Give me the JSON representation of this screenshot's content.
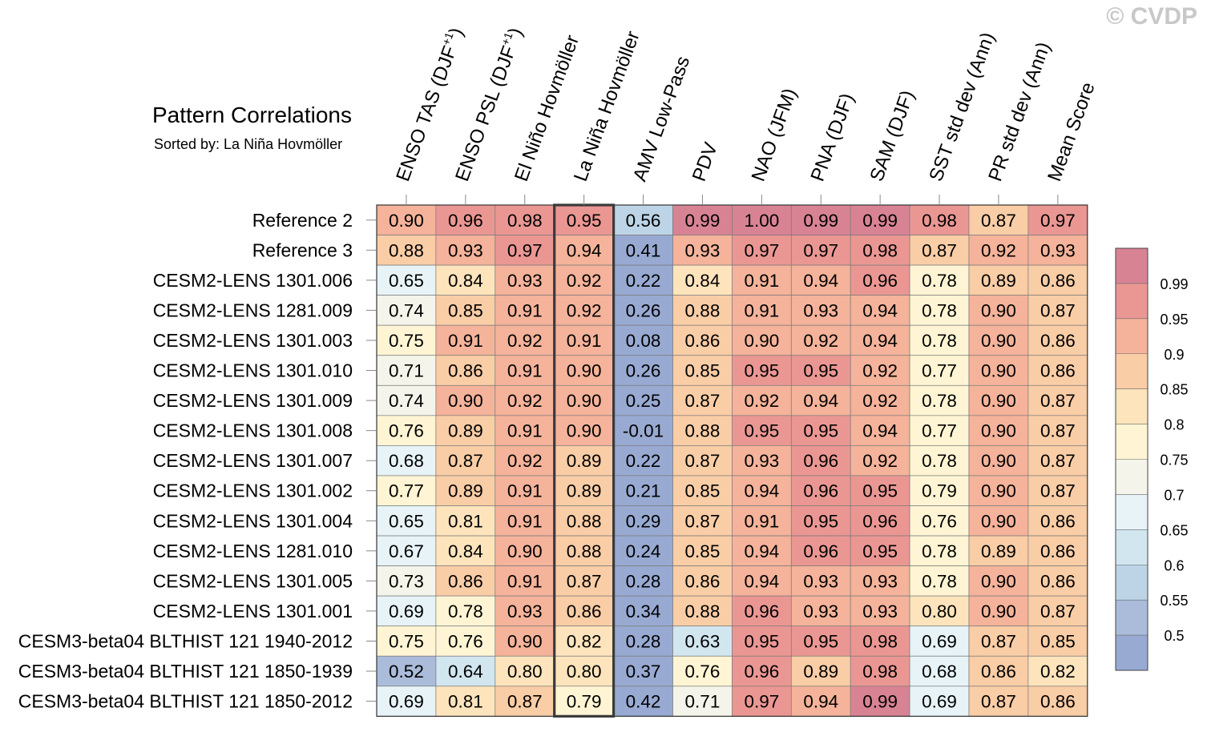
{
  "watermark": "© CVDP",
  "chart_data": {
    "type": "heatmap",
    "title": "Pattern Correlations",
    "subtitle": "Sorted by: La Niña Hovmöller",
    "highlighted_column": "La Niña Hovmöller",
    "columns": [
      {
        "name": "ENSO TAS (DJF",
        "sup": "+1",
        "tail": ")"
      },
      {
        "name": "ENSO PSL (DJF",
        "sup": "+1",
        "tail": ")"
      },
      {
        "name": "El Niño Hovmöller",
        "sup": "",
        "tail": ""
      },
      {
        "name": "La Niña Hovmöller",
        "sup": "",
        "tail": ""
      },
      {
        "name": "AMV Low-Pass",
        "sup": "",
        "tail": ""
      },
      {
        "name": "PDV",
        "sup": "",
        "tail": ""
      },
      {
        "name": "NAO (JFM)",
        "sup": "",
        "tail": ""
      },
      {
        "name": "PNA (DJF)",
        "sup": "",
        "tail": ""
      },
      {
        "name": "SAM (DJF)",
        "sup": "",
        "tail": ""
      },
      {
        "name": "SST std dev (Ann)",
        "sup": "",
        "tail": ""
      },
      {
        "name": "PR std dev (Ann)",
        "sup": "",
        "tail": ""
      },
      {
        "name": "Mean Score",
        "sup": "",
        "tail": ""
      }
    ],
    "rows": [
      "Reference 2",
      "Reference 3",
      "CESM2-LENS 1301.006",
      "CESM2-LENS 1281.009",
      "CESM2-LENS 1301.003",
      "CESM2-LENS 1301.010",
      "CESM2-LENS 1301.009",
      "CESM2-LENS 1301.008",
      "CESM2-LENS 1301.007",
      "CESM2-LENS 1301.002",
      "CESM2-LENS 1301.004",
      "CESM2-LENS 1281.010",
      "CESM2-LENS 1301.005",
      "CESM2-LENS 1301.001",
      "CESM3-beta04 BLTHIST 121 1940-2012",
      "CESM3-beta04 BLTHIST 121 1850-1939",
      "CESM3-beta04 BLTHIST 121 1850-2012"
    ],
    "values": [
      [
        "0.90",
        "0.96",
        "0.98",
        "0.95",
        "0.56",
        "0.99",
        "1.00",
        "0.99",
        "0.99",
        "0.98",
        "0.87",
        "0.97"
      ],
      [
        "0.88",
        "0.93",
        "0.97",
        "0.94",
        "0.41",
        "0.93",
        "0.97",
        "0.97",
        "0.98",
        "0.87",
        "0.92",
        "0.93"
      ],
      [
        "0.65",
        "0.84",
        "0.93",
        "0.92",
        "0.22",
        "0.84",
        "0.91",
        "0.94",
        "0.96",
        "0.78",
        "0.89",
        "0.86"
      ],
      [
        "0.74",
        "0.85",
        "0.91",
        "0.92",
        "0.26",
        "0.88",
        "0.91",
        "0.93",
        "0.94",
        "0.78",
        "0.90",
        "0.87"
      ],
      [
        "0.75",
        "0.91",
        "0.92",
        "0.91",
        "0.08",
        "0.86",
        "0.90",
        "0.92",
        "0.94",
        "0.78",
        "0.90",
        "0.86"
      ],
      [
        "0.71",
        "0.86",
        "0.91",
        "0.90",
        "0.26",
        "0.85",
        "0.95",
        "0.95",
        "0.92",
        "0.77",
        "0.90",
        "0.86"
      ],
      [
        "0.74",
        "0.90",
        "0.92",
        "0.90",
        "0.25",
        "0.87",
        "0.92",
        "0.94",
        "0.92",
        "0.78",
        "0.90",
        "0.87"
      ],
      [
        "0.76",
        "0.89",
        "0.91",
        "0.90",
        "-0.01",
        "0.88",
        "0.95",
        "0.95",
        "0.94",
        "0.77",
        "0.90",
        "0.87"
      ],
      [
        "0.68",
        "0.87",
        "0.92",
        "0.89",
        "0.22",
        "0.87",
        "0.93",
        "0.96",
        "0.92",
        "0.78",
        "0.90",
        "0.87"
      ],
      [
        "0.77",
        "0.89",
        "0.91",
        "0.89",
        "0.21",
        "0.85",
        "0.94",
        "0.96",
        "0.95",
        "0.79",
        "0.90",
        "0.87"
      ],
      [
        "0.65",
        "0.81",
        "0.91",
        "0.88",
        "0.29",
        "0.87",
        "0.91",
        "0.95",
        "0.96",
        "0.76",
        "0.90",
        "0.86"
      ],
      [
        "0.67",
        "0.84",
        "0.90",
        "0.88",
        "0.24",
        "0.85",
        "0.94",
        "0.96",
        "0.95",
        "0.78",
        "0.89",
        "0.86"
      ],
      [
        "0.73",
        "0.86",
        "0.91",
        "0.87",
        "0.28",
        "0.86",
        "0.94",
        "0.93",
        "0.93",
        "0.78",
        "0.90",
        "0.86"
      ],
      [
        "0.69",
        "0.78",
        "0.93",
        "0.86",
        "0.34",
        "0.88",
        "0.96",
        "0.93",
        "0.93",
        "0.80",
        "0.90",
        "0.87"
      ],
      [
        "0.75",
        "0.76",
        "0.90",
        "0.82",
        "0.28",
        "0.63",
        "0.95",
        "0.95",
        "0.98",
        "0.69",
        "0.87",
        "0.85"
      ],
      [
        "0.52",
        "0.64",
        "0.80",
        "0.80",
        "0.37",
        "0.76",
        "0.96",
        "0.89",
        "0.98",
        "0.68",
        "0.86",
        "0.82"
      ],
      [
        "0.69",
        "0.81",
        "0.87",
        "0.79",
        "0.42",
        "0.71",
        "0.97",
        "0.94",
        "0.99",
        "0.69",
        "0.87",
        "0.86"
      ]
    ],
    "colorbar": {
      "levels": [
        "0.5",
        "0.55",
        "0.6",
        "0.65",
        "0.7",
        "0.75",
        "0.8",
        "0.85",
        "0.9",
        "0.95",
        "0.99"
      ],
      "colors": [
        "#98aad2",
        "#aabcda",
        "#bcd4e6",
        "#d2e6f0",
        "#e7f3f7",
        "#f4f4ea",
        "#fff5d4",
        "#fde4bc",
        "#f9cda6",
        "#f4b39a",
        "#ea9793",
        "#d88394"
      ]
    }
  }
}
